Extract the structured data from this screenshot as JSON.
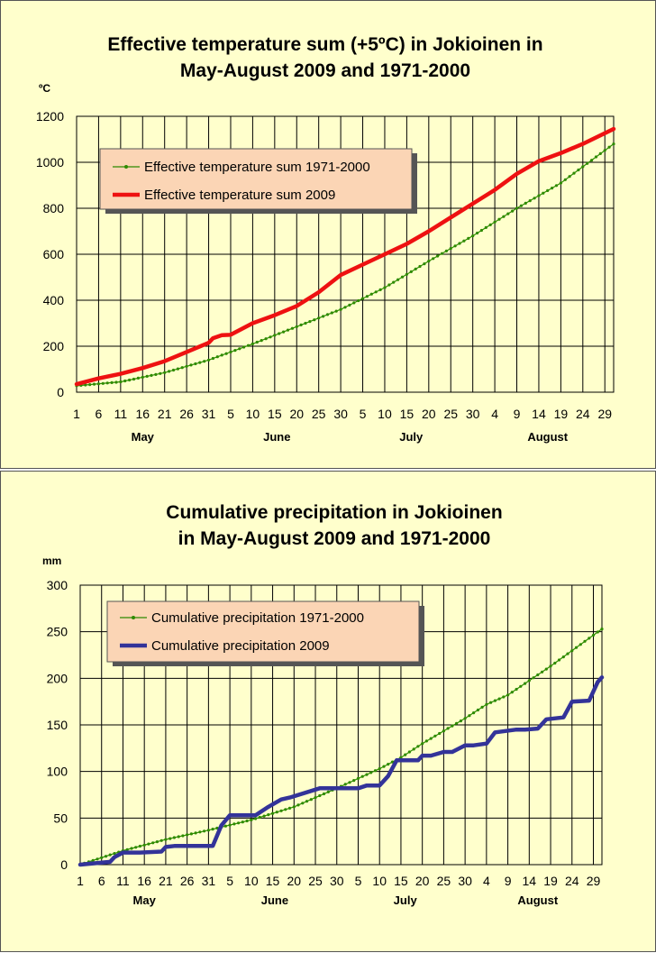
{
  "colors": {
    "panel_background": "#ffffcc",
    "legend_background": "#fbd5b5",
    "normal_series": "#2e8b00",
    "temperature_2009": "#ee1111",
    "precipitation_2009": "#333399"
  },
  "x_tick_labels": [
    "1",
    "6",
    "11",
    "16",
    "21",
    "26",
    "31",
    "5",
    "10",
    "15",
    "20",
    "25",
    "30",
    "5",
    "10",
    "15",
    "20",
    "25",
    "30",
    "4",
    "9",
    "14",
    "19",
    "24",
    "29"
  ],
  "chart_data": [
    {
      "type": "line",
      "title": "Effective temperature sum (+5ºC) in Jokioinen in May-August 2009 and 1971-2000",
      "title_lines": [
        "Effective temperature sum (+5ºC) in Jokioinen in",
        "May-August 2009 and 1971-2000"
      ],
      "ylabel": "ºC",
      "xlabel": "",
      "ylim": [
        0,
        1200
      ],
      "y_ticks": [
        0,
        200,
        400,
        600,
        800,
        1000,
        1200
      ],
      "x_unit": "day since 1 May (1 May = 0)",
      "xlim": [
        0,
        122
      ],
      "months": [
        {
          "name": "May",
          "center_day": 15
        },
        {
          "name": "June",
          "center_day": 45.5
        },
        {
          "name": "July",
          "center_day": 76
        },
        {
          "name": "August",
          "center_day": 107
        }
      ],
      "grid": true,
      "legend_position": "top-left",
      "series": [
        {
          "name": "Effective temperature sum 1971-2000",
          "style": "line-with-markers",
          "x": [
            0,
            10,
            20,
            30,
            40,
            50,
            60,
            70,
            80,
            90,
            100,
            110,
            122
          ],
          "y": [
            28,
            45,
            85,
            140,
            210,
            285,
            360,
            455,
            570,
            680,
            800,
            910,
            1080
          ]
        },
        {
          "name": "Effective temperature sum 2009",
          "style": "thick-line",
          "x": [
            0,
            5,
            10,
            15,
            20,
            25,
            30,
            31,
            33,
            35,
            40,
            45,
            50,
            55,
            60,
            65,
            70,
            75,
            80,
            85,
            90,
            95,
            100,
            105,
            110,
            115,
            122
          ],
          "y": [
            35,
            60,
            80,
            105,
            135,
            175,
            215,
            235,
            248,
            250,
            300,
            335,
            375,
            435,
            510,
            555,
            600,
            645,
            700,
            760,
            820,
            880,
            950,
            1005,
            1040,
            1080,
            1145
          ]
        }
      ]
    },
    {
      "type": "line",
      "title": "Cumulative precipitation in Jokioinen in May-August 2009 and 1971-2000",
      "title_lines": [
        "Cumulative precipitation in Jokioinen",
        "in May-August 2009 and 1971-2000"
      ],
      "ylabel": "mm",
      "xlabel": "",
      "ylim": [
        0,
        300
      ],
      "y_ticks": [
        0,
        50,
        100,
        150,
        200,
        250,
        300
      ],
      "x_unit": "day since 1 May (1 May = 0)",
      "xlim": [
        0,
        122
      ],
      "months": [
        {
          "name": "May",
          "center_day": 15
        },
        {
          "name": "June",
          "center_day": 45.5
        },
        {
          "name": "July",
          "center_day": 76
        },
        {
          "name": "August",
          "center_day": 107
        }
      ],
      "grid": true,
      "legend_position": "top-left",
      "series": [
        {
          "name": "Cumulative precipitation 1971-2000",
          "style": "line-with-markers",
          "x": [
            0,
            10,
            20,
            30,
            40,
            50,
            60,
            70,
            75,
            80,
            90,
            95,
            100,
            110,
            122
          ],
          "y": [
            0,
            15,
            27,
            37,
            48,
            62,
            82,
            103,
            115,
            130,
            157,
            172,
            182,
            213,
            253
          ]
        },
        {
          "name": "Cumulative precipitation 2009",
          "style": "thick-line",
          "x": [
            0,
            7,
            8,
            10,
            14,
            19,
            20,
            22,
            31,
            33,
            35,
            41,
            42,
            44,
            47,
            49,
            56,
            65,
            67,
            70,
            72,
            74,
            79,
            80,
            82,
            85,
            87,
            90,
            92,
            95,
            97,
            102,
            104,
            107,
            109,
            113,
            115,
            119,
            121,
            122
          ],
          "y": [
            0,
            3,
            8,
            13,
            13,
            14,
            19,
            20,
            20,
            42,
            53,
            53,
            56,
            62,
            70,
            72,
            82,
            82,
            85,
            85,
            95,
            112,
            112,
            117,
            117,
            121,
            121,
            128,
            128,
            130,
            142,
            145,
            145,
            146,
            156,
            158,
            175,
            176,
            196,
            201
          ]
        }
      ]
    }
  ]
}
